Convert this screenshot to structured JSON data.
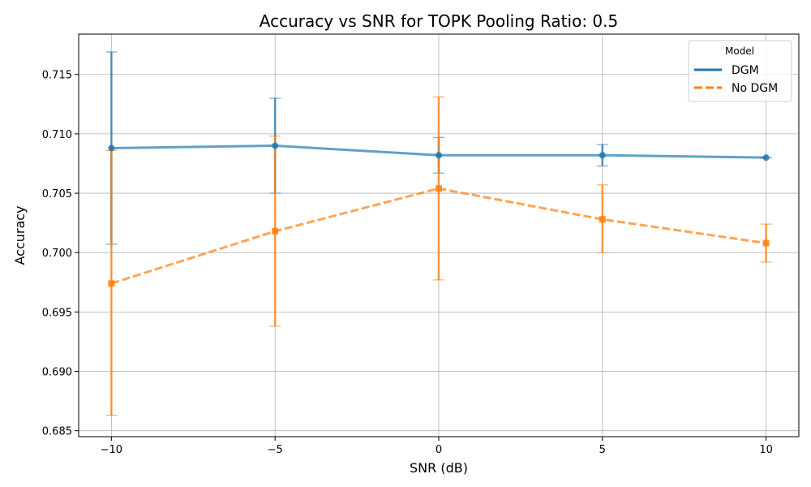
{
  "chart_data": {
    "type": "line",
    "title": "Accuracy vs SNR for TOPK Pooling Ratio: 0.5",
    "xlabel": "SNR (dB)",
    "ylabel": "Accuracy",
    "x": [
      -10,
      -5,
      0,
      5,
      10
    ],
    "xticks": [
      "−10",
      "−5",
      "0",
      "5",
      "10"
    ],
    "yticks": [
      "0.685",
      "0.690",
      "0.695",
      "0.700",
      "0.705",
      "0.710",
      "0.715"
    ],
    "xlim": [
      -11,
      11
    ],
    "ylim": [
      0.6845,
      0.7184
    ],
    "grid": true,
    "legend": {
      "title": "Model",
      "placement": "top-right"
    },
    "series": [
      {
        "name": "DGM",
        "color": "#1f77b4",
        "linestyle": "solid",
        "marker": "circle",
        "values": [
          0.7088,
          0.709,
          0.7082,
          0.7082,
          0.708
        ],
        "err_low": [
          0.7007,
          0.705,
          0.7067,
          0.7073,
          0.708
        ],
        "err_high": [
          0.7169,
          0.713,
          0.7097,
          0.7091,
          0.708
        ]
      },
      {
        "name": "No DGM",
        "color": "#ff7f0e",
        "linestyle": "dashed",
        "marker": "square",
        "values": [
          0.6974,
          0.7018,
          0.7054,
          0.7028,
          0.7008
        ],
        "err_low": [
          0.6863,
          0.6938,
          0.6977,
          0.7,
          0.6992
        ],
        "err_high": [
          0.7086,
          0.7098,
          0.7131,
          0.7057,
          0.7024
        ]
      }
    ]
  }
}
